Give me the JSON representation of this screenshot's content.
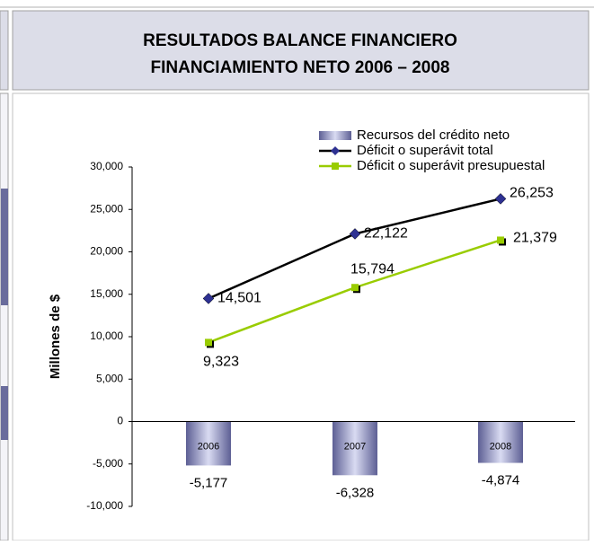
{
  "chart_data": {
    "type": "bar-line",
    "title": "RESULTADOS BALANCE FINANCIERO",
    "subtitle": "FINANCIAMIENTO NETO 2006 – 2008",
    "y_label": "Millones de $",
    "categories": [
      "2006",
      "2007",
      "2008"
    ],
    "ylim": [
      -10000,
      30000
    ],
    "yticks": [
      {
        "value": -10000,
        "label": "-10,000"
      },
      {
        "value": -5000,
        "label": "-5,000"
      },
      0,
      {
        "value": 5000,
        "label": "5,000"
      },
      {
        "value": 10000,
        "label": "10,000"
      },
      {
        "value": 15000,
        "label": "15,000"
      },
      {
        "value": 20000,
        "label": "20,000"
      },
      {
        "value": 25000,
        "label": "25,000"
      },
      {
        "value": 30000,
        "label": "30,000"
      }
    ],
    "grid": false,
    "legend": "top-right",
    "series": [
      {
        "name": "Recursos del crédito neto",
        "type": "bar",
        "color": "#8486b4",
        "values": [
          -5177,
          -6328,
          -4874
        ],
        "value_labels": [
          "-5,177",
          "-6,328",
          "-4,874"
        ]
      },
      {
        "name": "Déficit o superávit total",
        "type": "line",
        "color": "#000000",
        "marker_color": "#2e3192",
        "values": [
          14501,
          22122,
          26253
        ],
        "value_labels": [
          "14,501",
          "22,122",
          "26,253"
        ]
      },
      {
        "name": "Déficit o superávit presupuestal",
        "type": "line",
        "color": "#99cc00",
        "marker_color": "#99cc00",
        "values": [
          9323,
          15794,
          21379
        ],
        "value_labels": [
          "9,323",
          "15,794",
          "21,379"
        ]
      }
    ]
  }
}
